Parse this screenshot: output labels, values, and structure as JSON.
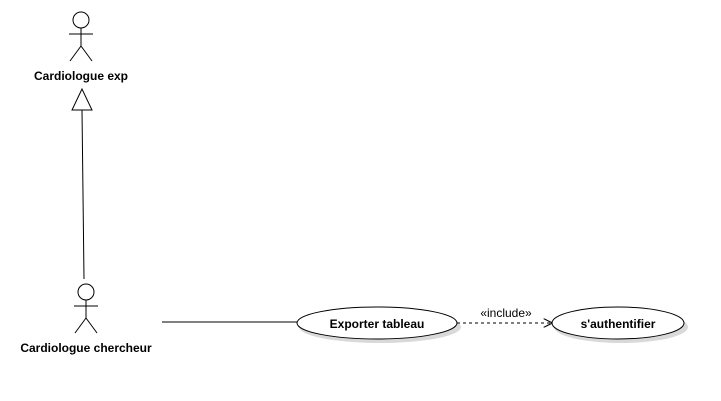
{
  "actors": {
    "expert": {
      "name": "Cardiologue exp"
    },
    "researcher": {
      "name": "Cardiologue chercheur"
    }
  },
  "use_cases": {
    "export": {
      "name": "Exporter tableau"
    },
    "auth": {
      "name": "s'authentifier"
    }
  },
  "relationships": {
    "include": {
      "stereotype": "«include»"
    }
  },
  "colors": {
    "stroke": "#000000",
    "fill": "#ffffff",
    "shadow": "#d9d9d9"
  }
}
